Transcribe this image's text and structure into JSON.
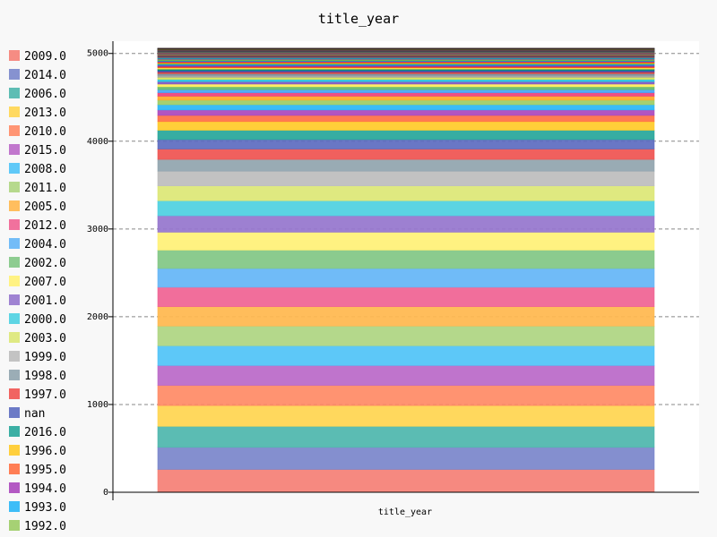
{
  "chart_data": {
    "type": "bar",
    "stacked": true,
    "title": "title_year",
    "xlabel": "title_year",
    "ylabel": "",
    "categories": [
      "title_year"
    ],
    "ylim": [
      0,
      5140
    ],
    "yticks": [
      0,
      1000,
      2000,
      3000,
      4000,
      5000
    ],
    "grid": "horizontal-dashed",
    "legend_position": "left",
    "series": [
      {
        "name": "2009.0",
        "values": [
          260
        ],
        "color": "#f57f75"
      },
      {
        "name": "2014.0",
        "values": [
          252
        ],
        "color": "#7986cb"
      },
      {
        "name": "2006.0",
        "values": [
          239
        ],
        "color": "#4db6ac"
      },
      {
        "name": "2013.0",
        "values": [
          237
        ],
        "color": "#ffd54f"
      },
      {
        "name": "2010.0",
        "values": [
          230
        ],
        "color": "#ff8a65"
      },
      {
        "name": "2015.0",
        "values": [
          226
        ],
        "color": "#ba68c8"
      },
      {
        "name": "2008.0",
        "values": [
          225
        ],
        "color": "#4fc3f7"
      },
      {
        "name": "2011.0",
        "values": [
          225
        ],
        "color": "#aed581"
      },
      {
        "name": "2005.0",
        "values": [
          221
        ],
        "color": "#ffb74d"
      },
      {
        "name": "2012.0",
        "values": [
          221
        ],
        "color": "#f06292"
      },
      {
        "name": "2004.0",
        "values": [
          214
        ],
        "color": "#64b5f6"
      },
      {
        "name": "2002.0",
        "values": [
          209
        ],
        "color": "#81c784"
      },
      {
        "name": "2007.0",
        "values": [
          204
        ],
        "color": "#fff176"
      },
      {
        "name": "2001.0",
        "values": [
          188
        ],
        "color": "#9575cd"
      },
      {
        "name": "2000.0",
        "values": [
          171
        ],
        "color": "#4dd0e1"
      },
      {
        "name": "2003.0",
        "values": [
          169
        ],
        "color": "#dce775"
      },
      {
        "name": "1999.0",
        "values": [
          168
        ],
        "color": "#bdbdbd"
      },
      {
        "name": "1998.0",
        "values": [
          134
        ],
        "color": "#90a4ae"
      },
      {
        "name": "1997.0",
        "values": [
          118
        ],
        "color": "#ef5350"
      },
      {
        "name": "nan",
        "values": [
          108
        ],
        "color": "#5c6bc0"
      },
      {
        "name": "2016.0",
        "values": [
          106
        ],
        "color": "#26a69a"
      },
      {
        "name": "1996.0",
        "values": [
          99
        ],
        "color": "#ffca28"
      },
      {
        "name": "1995.0",
        "values": [
          70
        ],
        "color": "#ff7043"
      },
      {
        "name": "1994.0",
        "values": [
          62
        ],
        "color": "#ab47bc"
      },
      {
        "name": "1993.0",
        "values": [
          60
        ],
        "color": "#29b6f6"
      },
      {
        "name": "1992.0",
        "values": [
          52
        ],
        "color": "#9ccc65"
      },
      {
        "name": "",
        "values": [
          45
        ],
        "color": "#ffa726"
      },
      {
        "name": "",
        "values": [
          40
        ],
        "color": "#ec407a"
      },
      {
        "name": "",
        "values": [
          35
        ],
        "color": "#42a5f5"
      },
      {
        "name": "",
        "values": [
          33
        ],
        "color": "#66bb6a"
      },
      {
        "name": "",
        "values": [
          30
        ],
        "color": "#ffee58"
      },
      {
        "name": "",
        "values": [
          28
        ],
        "color": "#7e57c2"
      },
      {
        "name": "",
        "values": [
          26
        ],
        "color": "#26c6da"
      },
      {
        "name": "",
        "values": [
          24
        ],
        "color": "#d4e157"
      },
      {
        "name": "",
        "values": [
          22
        ],
        "color": "#9e9e9e"
      },
      {
        "name": "",
        "values": [
          20
        ],
        "color": "#78909c"
      },
      {
        "name": "",
        "values": [
          18
        ],
        "color": "#e53935"
      },
      {
        "name": "",
        "values": [
          17
        ],
        "color": "#3949ab"
      },
      {
        "name": "",
        "values": [
          16
        ],
        "color": "#00897b"
      },
      {
        "name": "",
        "values": [
          15
        ],
        "color": "#fdd835"
      },
      {
        "name": "",
        "values": [
          14
        ],
        "color": "#f4511e"
      },
      {
        "name": "",
        "values": [
          13
        ],
        "color": "#8e24aa"
      },
      {
        "name": "",
        "values": [
          12
        ],
        "color": "#039be5"
      },
      {
        "name": "",
        "values": [
          11
        ],
        "color": "#7cb342"
      },
      {
        "name": "",
        "values": [
          10
        ],
        "color": "#fb8c00"
      },
      {
        "name": "",
        "values": [
          10
        ],
        "color": "#d81b60"
      },
      {
        "name": "",
        "values": [
          9
        ],
        "color": "#1e88e5"
      },
      {
        "name": "",
        "values": [
          9
        ],
        "color": "#43a047"
      },
      {
        "name": "",
        "values": [
          8
        ],
        "color": "#c0ca33"
      },
      {
        "name": "",
        "values": [
          8
        ],
        "color": "#5e35b1"
      },
      {
        "name": "",
        "values": [
          7
        ],
        "color": "#00acc1"
      },
      {
        "name": "",
        "values": [
          7
        ],
        "color": "#757575"
      },
      {
        "name": "",
        "values": [
          6
        ],
        "color": "#546e7a"
      },
      {
        "name": "",
        "values": [
          6
        ],
        "color": "#c62828"
      },
      {
        "name": "",
        "values": [
          6
        ],
        "color": "#283593"
      },
      {
        "name": "",
        "values": [
          5
        ],
        "color": "#00695c"
      },
      {
        "name": "",
        "values": [
          5
        ],
        "color": "#f9a825"
      },
      {
        "name": "",
        "values": [
          5
        ],
        "color": "#d84315"
      },
      {
        "name": "",
        "values": [
          5
        ],
        "color": "#6a1b9a"
      },
      {
        "name": "",
        "values": [
          4
        ],
        "color": "#0277bd"
      },
      {
        "name": "",
        "values": [
          4
        ],
        "color": "#558b2f"
      },
      {
        "name": "",
        "values": [
          4
        ],
        "color": "#ef6c00"
      },
      {
        "name": "",
        "values": [
          4
        ],
        "color": "#ad1457"
      },
      {
        "name": "",
        "values": [
          4
        ],
        "color": "#1565c0"
      },
      {
        "name": "",
        "values": [
          3
        ],
        "color": "#2e7d32"
      },
      {
        "name": "",
        "values": [
          3
        ],
        "color": "#9e9d24"
      },
      {
        "name": "",
        "values": [
          3
        ],
        "color": "#4527a0"
      },
      {
        "name": "",
        "values": [
          3
        ],
        "color": "#00838f"
      },
      {
        "name": "",
        "values": [
          3
        ],
        "color": "#424242"
      },
      {
        "name": "",
        "values": [
          3
        ],
        "color": "#37474f"
      },
      {
        "name": "",
        "values": [
          2
        ],
        "color": "#b71c1c"
      },
      {
        "name": "",
        "values": [
          2
        ],
        "color": "#1a237e"
      },
      {
        "name": "",
        "values": [
          2
        ],
        "color": "#004d40"
      },
      {
        "name": "",
        "values": [
          2
        ],
        "color": "#f57f17"
      },
      {
        "name": "",
        "values": [
          2
        ],
        "color": "#bf360c"
      },
      {
        "name": "",
        "values": [
          2
        ],
        "color": "#4a148c"
      },
      {
        "name": "",
        "values": [
          2
        ],
        "color": "#01579b"
      },
      {
        "name": "",
        "values": [
          2
        ],
        "color": "#33691e"
      },
      {
        "name": "",
        "values": [
          2
        ],
        "color": "#e65100"
      },
      {
        "name": "",
        "values": [
          2
        ],
        "color": "#880e4f"
      },
      {
        "name": "",
        "values": [
          1
        ],
        "color": "#0d47a1"
      },
      {
        "name": "",
        "values": [
          1
        ],
        "color": "#1b5e20"
      },
      {
        "name": "",
        "values": [
          1
        ],
        "color": "#827717"
      },
      {
        "name": "",
        "values": [
          1
        ],
        "color": "#311b92"
      },
      {
        "name": "",
        "values": [
          1
        ],
        "color": "#006064"
      },
      {
        "name": "",
        "values": [
          1
        ],
        "color": "#212121"
      },
      {
        "name": "",
        "values": [
          1
        ],
        "color": "#263238"
      },
      {
        "name": "",
        "values": [
          1
        ],
        "color": "#3e2723"
      }
    ]
  }
}
